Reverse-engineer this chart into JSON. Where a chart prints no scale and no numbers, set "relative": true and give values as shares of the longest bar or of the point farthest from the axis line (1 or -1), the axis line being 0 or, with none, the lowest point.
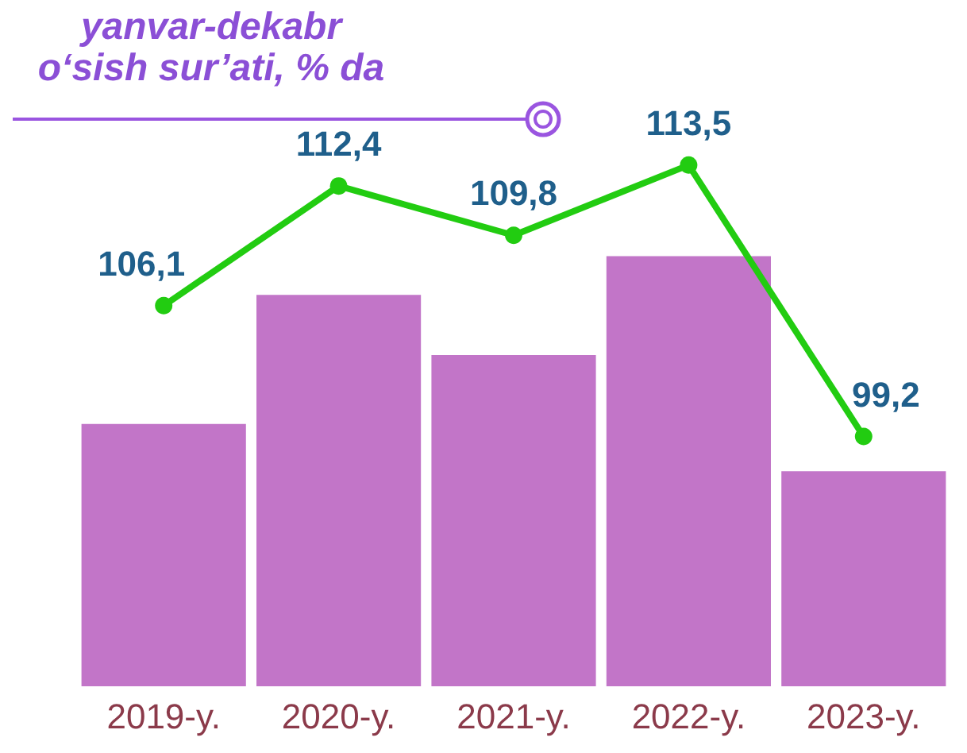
{
  "chart_data": [
    {
      "type": "bar",
      "relative": true,
      "categories": [
        "2019-y.",
        "2020-y.",
        "2021-y.",
        "2022-y.",
        "2023-y."
      ],
      "series": [
        {
          "color": "#c275c8",
          "values": [
            0.61,
            0.91,
            0.77,
            1,
            0.5
          ]
        }
      ]
    },
    {
      "type": "line",
      "title": "yanvar-dekabr",
      "subtitle": "o‘sish sur’ati, % da",
      "categories": [
        null,
        null,
        null,
        null,
        null
      ],
      "marker": "circle",
      "series": [
        {
          "color": "#22cc11",
          "values": [
            106.1,
            112.4,
            109.8,
            113.5,
            99.2
          ],
          "value_labels": [
            "106,1",
            "112,4",
            "109,8",
            "113,5",
            "99,2"
          ]
        }
      ]
    }
  ]
}
